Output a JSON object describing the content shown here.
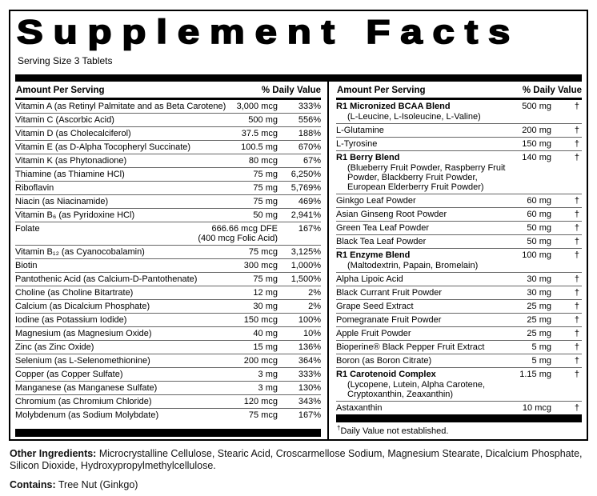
{
  "label": {
    "title": "Supplement Facts",
    "serving_size": "Serving Size 3 Tablets"
  },
  "left_table": {
    "header": {
      "amount_label": "Amount Per Serving",
      "dv_label": "% Daily Value"
    },
    "rows": [
      {
        "name": "Vitamin A (as Retinyl Palmitate and as Beta Carotene)",
        "amount": "3,000 mcg",
        "dv": "333%"
      },
      {
        "name": "Vitamin C (Ascorbic Acid)",
        "amount": "500 mg",
        "dv": "556%"
      },
      {
        "name": "Vitamin D (as Cholecalciferol)",
        "amount": "37.5 mcg",
        "dv": "188%"
      },
      {
        "name": "Vitamin E (as D-Alpha Tocopheryl Succinate)",
        "amount": "100.5 mg",
        "dv": "670%"
      },
      {
        "name": "Vitamin K (as Phytonadione)",
        "amount": "80 mcg",
        "dv": "67%"
      },
      {
        "name": "Thiamine (as Thiamine HCl)",
        "amount": "75 mg",
        "dv": "6,250%"
      },
      {
        "name": "Riboflavin",
        "amount": "75 mg",
        "dv": "5,769%"
      },
      {
        "name": "Niacin (as Niacinamide)",
        "amount": "75 mg",
        "dv": "469%"
      },
      {
        "name": "Vitamin B₆ (as Pyridoxine HCl)",
        "amount": "50 mg",
        "dv": "2,941%"
      },
      {
        "name": "Folate",
        "amount": "666.66 mcg DFE",
        "amount2": "(400 mcg Folic Acid)",
        "dv": "167%"
      },
      {
        "name": "Vitamin B₁₂ (as Cyanocobalamin)",
        "amount": "75 mcg",
        "dv": "3,125%"
      },
      {
        "name": "Biotin",
        "amount": "300 mcg",
        "dv": "1,000%"
      },
      {
        "name": "Pantothenic Acid (as Calcium-D-Pantothenate)",
        "amount": "75 mg",
        "dv": "1,500%"
      },
      {
        "name": "Choline (as Choline Bitartrate)",
        "amount": "12 mg",
        "dv": "2%"
      },
      {
        "name": "Calcium (as Dicalcium Phosphate)",
        "amount": "30 mg",
        "dv": "2%"
      },
      {
        "name": "Iodine (as Potassium Iodide)",
        "amount": "150 mcg",
        "dv": "100%"
      },
      {
        "name": "Magnesium (as Magnesium Oxide)",
        "amount": "40 mg",
        "dv": "10%"
      },
      {
        "name": "Zinc (as Zinc Oxide)",
        "amount": "15 mg",
        "dv": "136%"
      },
      {
        "name": "Selenium (as L-Selenomethionine)",
        "amount": "200 mcg",
        "dv": "364%"
      },
      {
        "name": "Copper (as Copper Sulfate)",
        "amount": "3 mg",
        "dv": "333%"
      },
      {
        "name": "Manganese (as Manganese Sulfate)",
        "amount": "3 mg",
        "dv": "130%"
      },
      {
        "name": "Chromium (as Chromium Chloride)",
        "amount": "120 mcg",
        "dv": "343%"
      },
      {
        "name": "Molybdenum (as Sodium Molybdate)",
        "amount": "75 mcg",
        "dv": "167%"
      }
    ]
  },
  "right_table": {
    "header": {
      "amount_label": "Amount Per Serving",
      "dv_label": "% Daily Value"
    },
    "rows": [
      {
        "name": "R1 Micronized BCAA Blend",
        "bold": true,
        "sub": "(L-Leucine, L-Isoleucine, L-Valine)",
        "amount": "500 mg",
        "dv": "†"
      },
      {
        "name": "L-Glutamine",
        "amount": "200 mg",
        "dv": "†"
      },
      {
        "name": "L-Tyrosine",
        "amount": "150 mg",
        "dv": "†"
      },
      {
        "name": "R1 Berry Blend",
        "bold": true,
        "sub": "(Blueberry Fruit Powder, Raspberry Fruit Powder, Blackberry Fruit Powder, European Elderberry Fruit Powder)",
        "amount": "140 mg",
        "dv": "†"
      },
      {
        "name": "Ginkgo Leaf Powder",
        "amount": "60 mg",
        "dv": "†"
      },
      {
        "name": "Asian Ginseng Root Powder",
        "amount": "60 mg",
        "dv": "†"
      },
      {
        "name": "Green Tea Leaf Powder",
        "amount": "50 mg",
        "dv": "†"
      },
      {
        "name": "Black Tea Leaf Powder",
        "amount": "50 mg",
        "dv": "†"
      },
      {
        "name": "R1 Enzyme Blend",
        "bold": true,
        "sub": "(Maltodextrin, Papain, Bromelain)",
        "amount": "100 mg",
        "dv": "†"
      },
      {
        "name": "Alpha Lipoic Acid",
        "amount": "30 mg",
        "dv": "†"
      },
      {
        "name": "Black Currant Fruit Powder",
        "amount": "30 mg",
        "dv": "†"
      },
      {
        "name": "Grape Seed Extract",
        "amount": "25 mg",
        "dv": "†"
      },
      {
        "name": "Pomegranate Fruit Powder",
        "amount": "25 mg",
        "dv": "†"
      },
      {
        "name": "Apple Fruit Powder",
        "amount": "25 mg",
        "dv": "†"
      },
      {
        "name": "Bioperine® Black Pepper Fruit Extract",
        "amount": "5 mg",
        "dv": "†"
      },
      {
        "name": "Boron (as Boron Citrate)",
        "amount": "5 mg",
        "dv": "†"
      },
      {
        "name": "R1 Carotenoid Complex",
        "bold": true,
        "sub": "(Lycopene, Lutein, Alpha Carotene, Cryptoxanthin, Zeaxanthin)",
        "amount": "1.15 mg",
        "dv": "†"
      },
      {
        "name": "Astaxanthin",
        "amount": "10 mcg",
        "dv": "†"
      }
    ],
    "footnote": {
      "dagger": "†",
      "text": "Daily Value not established."
    }
  },
  "footer": {
    "other_ingredients_label": "Other Ingredients:",
    "other_ingredients_text": " Microcrystalline Cellulose, Stearic Acid, Croscarmellose Sodium, Magnesium Stearate, Dicalcium Phosphate, Silicon Dioxide, Hydroxypropylmethylcellulose.",
    "contains_label": "Contains:",
    "contains_text": " Tree Nut (Ginkgo)"
  },
  "colors": {
    "text": "#000000",
    "background": "#ffffff",
    "bar": "#000000",
    "separator": "#666666"
  }
}
